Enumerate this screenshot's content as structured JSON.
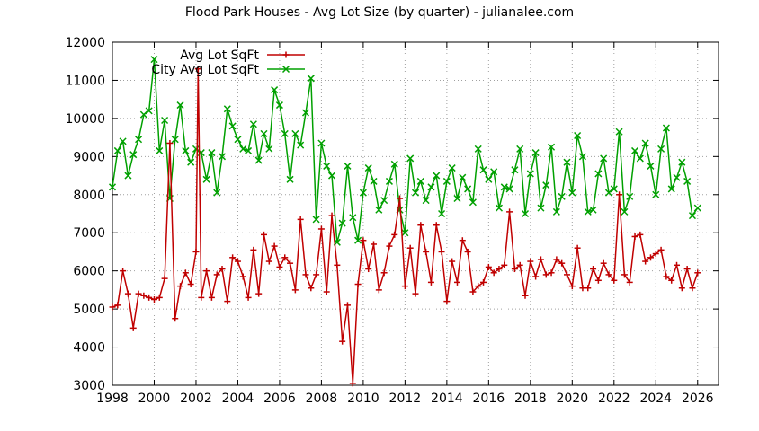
{
  "chart_data": {
    "type": "line",
    "title": "Flood Park Houses - Avg Lot Size (by quarter) - julianalee.com",
    "xlabel": "",
    "ylabel": "",
    "xlim": [
      1998,
      2027
    ],
    "ylim": [
      3000,
      12000
    ],
    "x_ticks": [
      1998,
      2000,
      2002,
      2004,
      2006,
      2008,
      2010,
      2012,
      2014,
      2016,
      2018,
      2020,
      2022,
      2024,
      2026
    ],
    "y_ticks": [
      3000,
      4000,
      5000,
      6000,
      7000,
      8000,
      9000,
      10000,
      11000,
      12000
    ],
    "grid": true,
    "legend_position": "top-left",
    "series": [
      {
        "name": "Avg Lot SqFt",
        "color": "#c00000",
        "marker": "plus",
        "points": [
          [
            1998.0,
            5050
          ],
          [
            1998.25,
            5100
          ],
          [
            1998.5,
            6000
          ],
          [
            1998.75,
            5400
          ],
          [
            1999.0,
            4500
          ],
          [
            1999.25,
            5400
          ],
          [
            1999.5,
            5350
          ],
          [
            1999.75,
            5300
          ],
          [
            2000.0,
            5250
          ],
          [
            2000.25,
            5300
          ],
          [
            2000.5,
            5800
          ],
          [
            2000.75,
            9350
          ],
          [
            2001.0,
            4750
          ],
          [
            2001.25,
            5600
          ],
          [
            2001.5,
            5950
          ],
          [
            2001.75,
            5650
          ],
          [
            2002.0,
            6500
          ],
          [
            2002.1,
            11300
          ],
          [
            2002.25,
            5300
          ],
          [
            2002.5,
            6000
          ],
          [
            2002.75,
            5300
          ],
          [
            2003.0,
            5900
          ],
          [
            2003.25,
            6050
          ],
          [
            2003.5,
            5200
          ],
          [
            2003.75,
            6350
          ],
          [
            2004.0,
            6250
          ],
          [
            2004.25,
            5850
          ],
          [
            2004.5,
            5300
          ],
          [
            2004.75,
            6550
          ],
          [
            2005.0,
            5400
          ],
          [
            2005.25,
            6950
          ],
          [
            2005.5,
            6250
          ],
          [
            2005.75,
            6650
          ],
          [
            2006.0,
            6100
          ],
          [
            2006.25,
            6350
          ],
          [
            2006.5,
            6200
          ],
          [
            2006.75,
            5500
          ],
          [
            2007.0,
            7350
          ],
          [
            2007.25,
            5900
          ],
          [
            2007.5,
            5550
          ],
          [
            2007.75,
            5900
          ],
          [
            2008.0,
            7100
          ],
          [
            2008.25,
            5450
          ],
          [
            2008.5,
            7450
          ],
          [
            2008.75,
            6150
          ],
          [
            2009.0,
            4150
          ],
          [
            2009.25,
            5100
          ],
          [
            2009.5,
            3050
          ],
          [
            2009.75,
            5650
          ],
          [
            2010.0,
            6800
          ],
          [
            2010.25,
            6050
          ],
          [
            2010.5,
            6700
          ],
          [
            2010.75,
            5500
          ],
          [
            2011.0,
            5950
          ],
          [
            2011.25,
            6650
          ],
          [
            2011.5,
            6950
          ],
          [
            2011.75,
            7900
          ],
          [
            2012.0,
            5600
          ],
          [
            2012.25,
            6600
          ],
          [
            2012.5,
            5400
          ],
          [
            2012.75,
            7200
          ],
          [
            2013.0,
            6500
          ],
          [
            2013.25,
            5700
          ],
          [
            2013.5,
            7200
          ],
          [
            2013.75,
            6500
          ],
          [
            2014.0,
            5200
          ],
          [
            2014.25,
            6250
          ],
          [
            2014.5,
            5700
          ],
          [
            2014.75,
            6800
          ],
          [
            2015.0,
            6500
          ],
          [
            2015.25,
            5450
          ],
          [
            2015.5,
            5600
          ],
          [
            2015.75,
            5700
          ],
          [
            2016.0,
            6100
          ],
          [
            2016.25,
            5950
          ],
          [
            2016.5,
            6050
          ],
          [
            2016.75,
            6150
          ],
          [
            2017.0,
            7550
          ],
          [
            2017.25,
            6050
          ],
          [
            2017.5,
            6150
          ],
          [
            2017.75,
            5350
          ],
          [
            2018.0,
            6250
          ],
          [
            2018.25,
            5850
          ],
          [
            2018.5,
            6300
          ],
          [
            2018.75,
            5900
          ],
          [
            2019.0,
            5950
          ],
          [
            2019.25,
            6300
          ],
          [
            2019.5,
            6200
          ],
          [
            2019.75,
            5900
          ],
          [
            2020.0,
            5600
          ],
          [
            2020.25,
            6600
          ],
          [
            2020.5,
            5550
          ],
          [
            2020.75,
            5550
          ],
          [
            2021.0,
            6050
          ],
          [
            2021.25,
            5750
          ],
          [
            2021.5,
            6200
          ],
          [
            2021.75,
            5900
          ],
          [
            2022.0,
            5750
          ],
          [
            2022.25,
            8000
          ],
          [
            2022.5,
            5900
          ],
          [
            2022.75,
            5700
          ],
          [
            2023.0,
            6900
          ],
          [
            2023.25,
            6950
          ],
          [
            2023.5,
            6250
          ],
          [
            2023.75,
            6350
          ],
          [
            2024.0,
            6450
          ],
          [
            2024.25,
            6550
          ],
          [
            2024.5,
            5850
          ],
          [
            2024.75,
            5750
          ],
          [
            2025.0,
            6150
          ],
          [
            2025.25,
            5550
          ],
          [
            2025.5,
            6050
          ],
          [
            2025.75,
            5550
          ],
          [
            2026.0,
            5950
          ]
        ]
      },
      {
        "name": "City Avg Lot SqFt",
        "color": "#00a000",
        "marker": "x",
        "points": [
          [
            1998.0,
            8200
          ],
          [
            1998.25,
            9150
          ],
          [
            1998.5,
            9400
          ],
          [
            1998.75,
            8500
          ],
          [
            1999.0,
            9050
          ],
          [
            1999.25,
            9450
          ],
          [
            1999.5,
            10100
          ],
          [
            1999.75,
            10200
          ],
          [
            2000.0,
            11550
          ],
          [
            2000.25,
            9150
          ],
          [
            2000.5,
            9950
          ],
          [
            2000.75,
            7900
          ],
          [
            2001.0,
            9450
          ],
          [
            2001.25,
            10350
          ],
          [
            2001.5,
            9150
          ],
          [
            2001.75,
            8850
          ],
          [
            2002.0,
            9200
          ],
          [
            2002.25,
            9100
          ],
          [
            2002.5,
            8400
          ],
          [
            2002.75,
            9100
          ],
          [
            2003.0,
            8050
          ],
          [
            2003.25,
            9000
          ],
          [
            2003.5,
            10250
          ],
          [
            2003.75,
            9800
          ],
          [
            2004.0,
            9450
          ],
          [
            2004.25,
            9200
          ],
          [
            2004.5,
            9150
          ],
          [
            2004.75,
            9850
          ],
          [
            2005.0,
            8900
          ],
          [
            2005.25,
            9600
          ],
          [
            2005.5,
            9200
          ],
          [
            2005.75,
            10750
          ],
          [
            2006.0,
            10350
          ],
          [
            2006.25,
            9600
          ],
          [
            2006.5,
            8400
          ],
          [
            2006.75,
            9600
          ],
          [
            2007.0,
            9300
          ],
          [
            2007.25,
            10150
          ],
          [
            2007.5,
            11050
          ],
          [
            2007.75,
            7350
          ],
          [
            2008.0,
            9350
          ],
          [
            2008.25,
            8750
          ],
          [
            2008.5,
            8500
          ],
          [
            2008.75,
            6750
          ],
          [
            2009.0,
            7250
          ],
          [
            2009.25,
            8750
          ],
          [
            2009.5,
            7400
          ],
          [
            2009.75,
            6800
          ],
          [
            2010.0,
            8050
          ],
          [
            2010.25,
            8700
          ],
          [
            2010.5,
            8350
          ],
          [
            2010.75,
            7600
          ],
          [
            2011.0,
            7850
          ],
          [
            2011.25,
            8350
          ],
          [
            2011.5,
            8800
          ],
          [
            2011.75,
            7600
          ],
          [
            2012.0,
            7000
          ],
          [
            2012.25,
            8950
          ],
          [
            2012.5,
            8050
          ],
          [
            2012.75,
            8350
          ],
          [
            2013.0,
            7850
          ],
          [
            2013.25,
            8200
          ],
          [
            2013.5,
            8500
          ],
          [
            2013.75,
            7500
          ],
          [
            2014.0,
            8350
          ],
          [
            2014.25,
            8700
          ],
          [
            2014.5,
            7900
          ],
          [
            2014.75,
            8450
          ],
          [
            2015.0,
            8150
          ],
          [
            2015.25,
            7800
          ],
          [
            2015.5,
            9200
          ],
          [
            2015.75,
            8650
          ],
          [
            2016.0,
            8400
          ],
          [
            2016.25,
            8600
          ],
          [
            2016.5,
            7650
          ],
          [
            2016.75,
            8200
          ],
          [
            2017.0,
            8150
          ],
          [
            2017.25,
            8650
          ],
          [
            2017.5,
            9200
          ],
          [
            2017.75,
            7500
          ],
          [
            2018.0,
            8550
          ],
          [
            2018.25,
            9100
          ],
          [
            2018.5,
            7650
          ],
          [
            2018.75,
            8250
          ],
          [
            2019.0,
            9250
          ],
          [
            2019.25,
            7550
          ],
          [
            2019.5,
            7950
          ],
          [
            2019.75,
            8850
          ],
          [
            2020.0,
            8050
          ],
          [
            2020.25,
            9550
          ],
          [
            2020.5,
            9000
          ],
          [
            2020.75,
            7550
          ],
          [
            2021.0,
            7600
          ],
          [
            2021.25,
            8550
          ],
          [
            2021.5,
            8950
          ],
          [
            2021.75,
            8050
          ],
          [
            2022.0,
            8150
          ],
          [
            2022.25,
            9650
          ],
          [
            2022.5,
            7550
          ],
          [
            2022.75,
            7950
          ],
          [
            2023.0,
            9150
          ],
          [
            2023.25,
            8950
          ],
          [
            2023.5,
            9350
          ],
          [
            2023.75,
            8750
          ],
          [
            2024.0,
            8000
          ],
          [
            2024.25,
            9200
          ],
          [
            2024.5,
            9750
          ],
          [
            2024.75,
            8150
          ],
          [
            2025.0,
            8450
          ],
          [
            2025.25,
            8850
          ],
          [
            2025.5,
            8350
          ],
          [
            2025.75,
            7450
          ],
          [
            2026.0,
            7650
          ]
        ]
      }
    ]
  }
}
